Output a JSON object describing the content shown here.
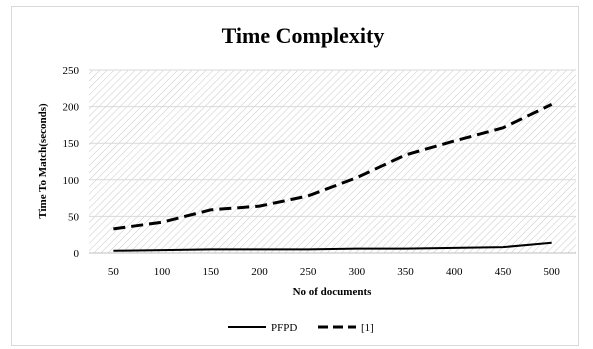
{
  "chart_data": {
    "type": "line",
    "title": "Time Complexity",
    "xlabel": "No of documents",
    "ylabel": "Time To Match(seconds)",
    "categories": [
      "50",
      "100",
      "150",
      "200",
      "250",
      "300",
      "350",
      "400",
      "450",
      "500"
    ],
    "ylim": [
      0,
      250
    ],
    "yticks": [
      "0",
      "50",
      "100",
      "150",
      "200",
      "250"
    ],
    "grid": true,
    "legend_position": "bottom",
    "series": [
      {
        "name": "PFPD",
        "values": [
          3,
          4,
          5,
          5,
          5,
          6,
          6,
          7,
          8,
          14
        ],
        "color": "#000000",
        "style": "solid"
      },
      {
        "name": "[1]",
        "values": [
          33,
          42,
          59,
          64,
          78,
          103,
          134,
          153,
          171,
          203
        ],
        "color": "#000000",
        "style": "dashed"
      }
    ]
  }
}
